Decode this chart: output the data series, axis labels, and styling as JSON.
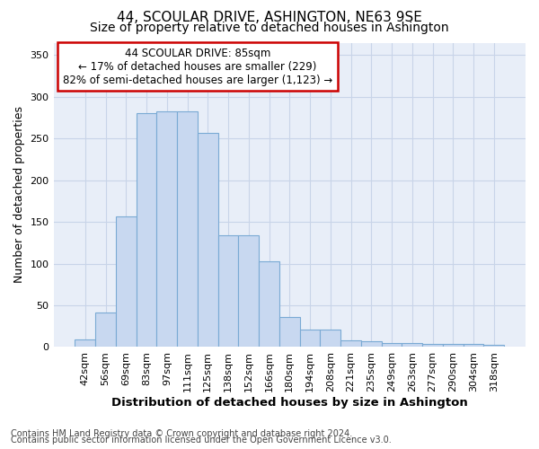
{
  "title": "44, SCOULAR DRIVE, ASHINGTON, NE63 9SE",
  "subtitle": "Size of property relative to detached houses in Ashington",
  "xlabel": "Distribution of detached houses by size in Ashington",
  "ylabel": "Number of detached properties",
  "categories": [
    "42sqm",
    "56sqm",
    "69sqm",
    "83sqm",
    "97sqm",
    "111sqm",
    "125sqm",
    "138sqm",
    "152sqm",
    "166sqm",
    "180sqm",
    "194sqm",
    "208sqm",
    "221sqm",
    "235sqm",
    "249sqm",
    "263sqm",
    "277sqm",
    "290sqm",
    "304sqm",
    "318sqm"
  ],
  "values": [
    9,
    41,
    157,
    281,
    283,
    283,
    257,
    134,
    134,
    103,
    36,
    21,
    21,
    8,
    7,
    5,
    5,
    4,
    4,
    4,
    3
  ],
  "bar_color": "#c8d8f0",
  "bar_edge_color": "#7aaad4",
  "annotation_box_text": "44 SCOULAR DRIVE: 85sqm\n← 17% of detached houses are smaller (229)\n82% of semi-detached houses are larger (1,123) →",
  "annotation_box_color": "white",
  "annotation_box_edge_color": "#cc0000",
  "footnote1": "Contains HM Land Registry data © Crown copyright and database right 2024.",
  "footnote2": "Contains public sector information licensed under the Open Government Licence v3.0.",
  "ylim": [
    0,
    365
  ],
  "yticks": [
    0,
    50,
    100,
    150,
    200,
    250,
    300,
    350
  ],
  "grid_color": "#c8d4e8",
  "bg_color": "#e8eef8",
  "title_fontsize": 11,
  "subtitle_fontsize": 10,
  "xlabel_fontsize": 9.5,
  "ylabel_fontsize": 9,
  "tick_fontsize": 8,
  "annot_fontsize": 8.5,
  "footnote_fontsize": 7
}
